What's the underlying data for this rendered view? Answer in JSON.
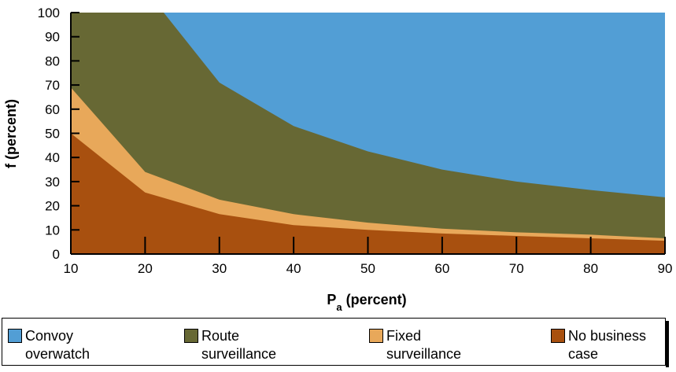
{
  "chart_data": {
    "type": "area",
    "stacking": "cumulative",
    "xlabel_base": "P",
    "xlabel_sub": "a",
    "xlabel_rest": " (percent)",
    "ylabel": "f (percent)",
    "xlim": [
      10,
      90
    ],
    "ylim": [
      0,
      100
    ],
    "x_ticks": [
      10,
      20,
      30,
      40,
      50,
      60,
      70,
      80,
      90
    ],
    "y_ticks": [
      0,
      10,
      20,
      30,
      40,
      50,
      60,
      70,
      80,
      90,
      100
    ],
    "grid": false,
    "legend_position": "bottom",
    "x": [
      10,
      20,
      30,
      40,
      50,
      60,
      70,
      80,
      90
    ],
    "series": [
      {
        "name": "No business case",
        "color": "#A8500F",
        "upper_boundary": [
          50,
          25.5,
          16.5,
          12,
          10,
          8.5,
          7.5,
          6.5,
          5.5
        ]
      },
      {
        "name": "Fixed surveillance",
        "color": "#E8A85A",
        "upper_boundary": [
          69,
          34,
          22.5,
          16.5,
          13,
          10.5,
          9,
          8,
          6.5
        ]
      },
      {
        "name": "Route surveillance",
        "color": "#676834",
        "upper_boundary": [
          100,
          100,
          71,
          53,
          42.5,
          35,
          30,
          26.5,
          23.5
        ],
        "note_crossing_100_at_x": 22.5
      },
      {
        "name": "Convoy overwatch",
        "color": "#529ED5",
        "upper_boundary": [
          100,
          100,
          100,
          100,
          100,
          100,
          100,
          100,
          100
        ]
      }
    ],
    "legend": [
      {
        "label": "Convoy\noverwatch",
        "color": "#529ED5"
      },
      {
        "label": "Route\nsurveillance",
        "color": "#676834"
      },
      {
        "label": "Fixed\nsurveillance",
        "color": "#E8A85A"
      },
      {
        "label": "No business\ncase",
        "color": "#A8500F"
      }
    ]
  }
}
